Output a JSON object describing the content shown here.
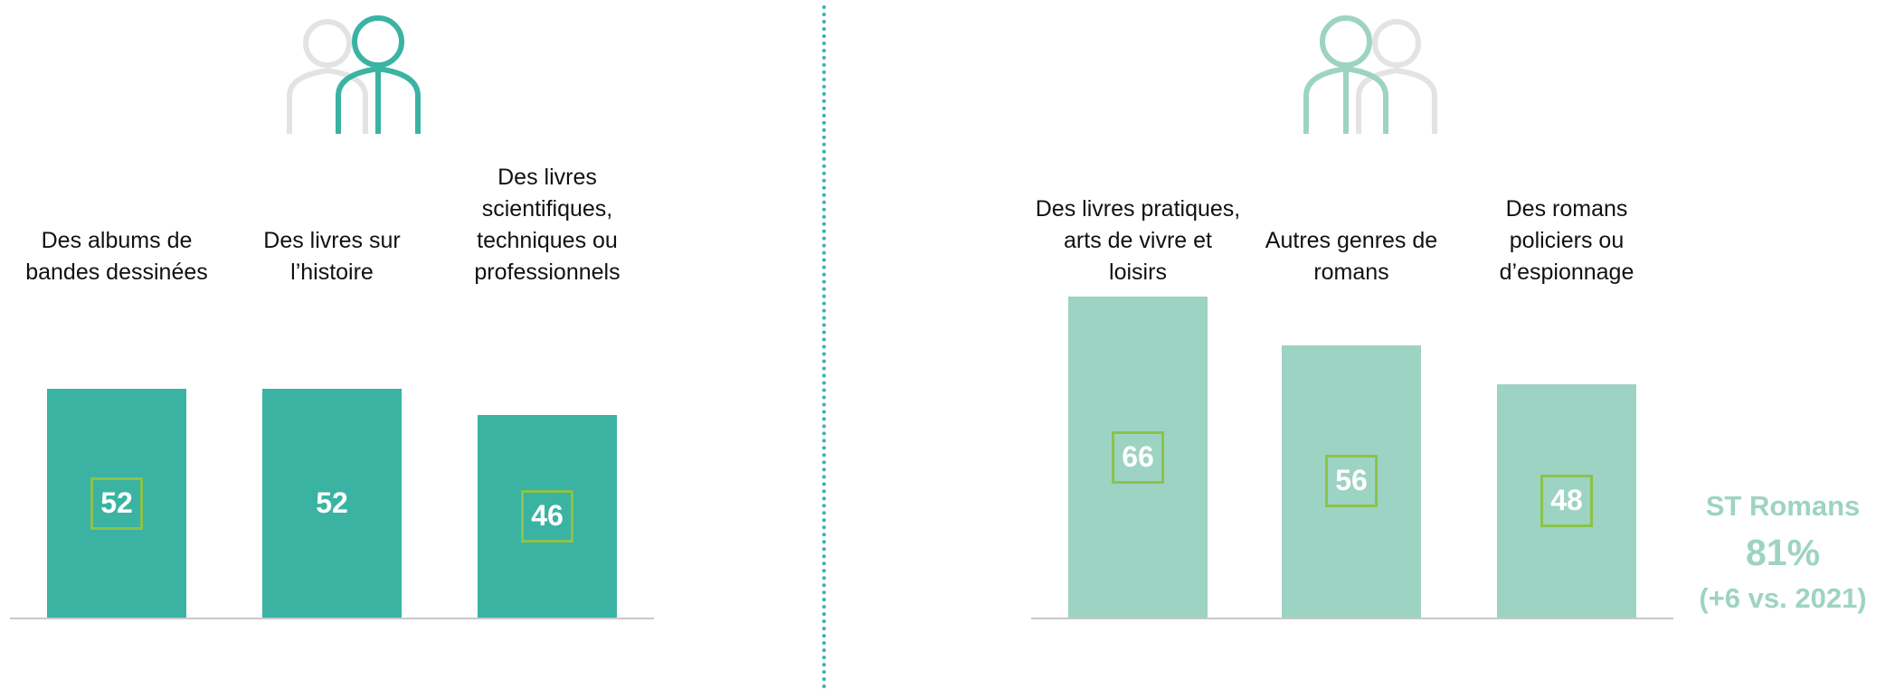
{
  "chart_data": [
    {
      "type": "bar",
      "categories": [
        "Des albums de bandes dessinées",
        "Des livres sur l’histoire",
        "Des livres scientifiques, techniques ou professionnels"
      ],
      "values": [
        52,
        52,
        46
      ],
      "color": "#3ab3a3",
      "ylim": [
        0,
        73
      ]
    },
    {
      "type": "bar",
      "categories": [
        "Des livres pratiques, arts de vivre et loisirs",
        "Autres genres de romans",
        "Des romans policiers ou d’espionnage"
      ],
      "values": [
        66,
        56,
        48
      ],
      "color": "#9dd3c2",
      "ylim": [
        0,
        66
      ],
      "annotations": [
        "ST Romans",
        "81%",
        "(+6 vs. 2021)"
      ]
    }
  ]
}
